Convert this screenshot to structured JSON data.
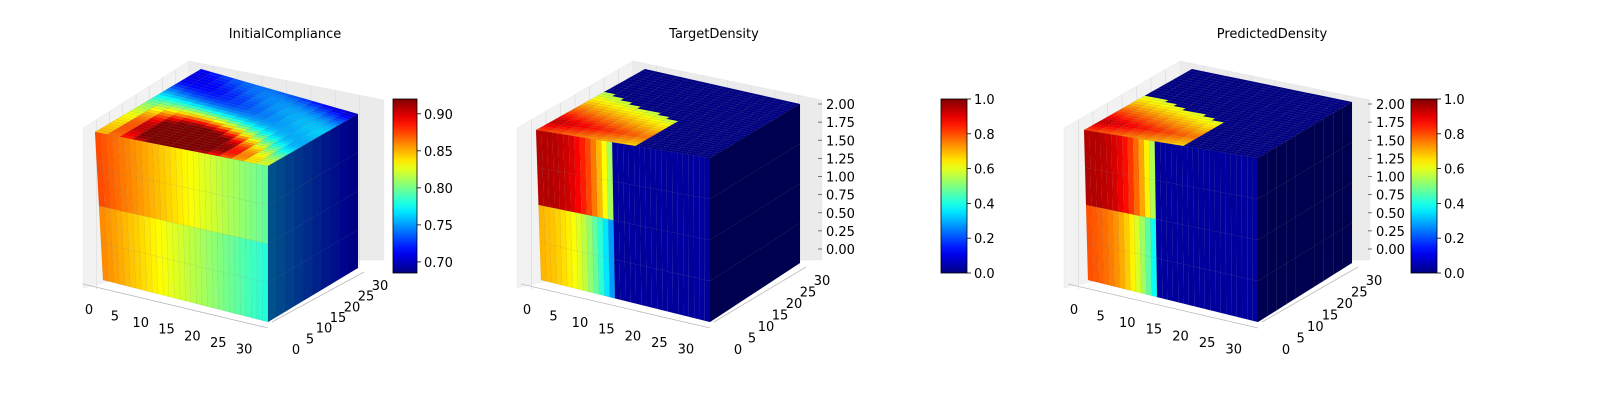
{
  "colormap": "jet",
  "charts": [
    {
      "title": "InitialCompliance",
      "x_ticks": [
        "0",
        "5",
        "10",
        "15",
        "20",
        "25",
        "30"
      ],
      "y_ticks": [
        "0",
        "5",
        "10",
        "15",
        "20",
        "25",
        "30"
      ],
      "z_ticks": [],
      "colorbar": {
        "ticks": [
          "0.70",
          "0.75",
          "0.80",
          "0.85",
          "0.90"
        ],
        "range": [
          0.685,
          0.92
        ]
      },
      "surface": {
        "front_left": 0.86,
        "front_right": 0.78,
        "top_hot": 0.92,
        "top_cool": 0.72,
        "side": 0.7
      }
    },
    {
      "title": "TargetDensity",
      "x_ticks": [
        "0",
        "5",
        "10",
        "15",
        "20",
        "25",
        "30"
      ],
      "y_ticks": [
        "0",
        "5",
        "10",
        "15",
        "20",
        "25",
        "30"
      ],
      "z_ticks": [
        "0.00",
        "0.25",
        "0.50",
        "0.75",
        "1.00",
        "1.25",
        "1.50",
        "1.75",
        "2.00"
      ],
      "colorbar": {
        "ticks": [
          "0.0",
          "0.2",
          "0.4",
          "0.6",
          "0.8",
          "1.0"
        ],
        "range": [
          0,
          1
        ]
      },
      "surface": {
        "solid_until": 0.45,
        "lower_value": 0.6,
        "upper_value": 0.95
      }
    },
    {
      "title": "PredictedDensity",
      "x_ticks": [
        "0",
        "5",
        "10",
        "15",
        "20",
        "25",
        "30"
      ],
      "y_ticks": [
        "0",
        "5",
        "10",
        "15",
        "20",
        "25",
        "30"
      ],
      "z_ticks": [
        "0.00",
        "0.25",
        "0.50",
        "0.75",
        "1.00",
        "1.25",
        "1.50",
        "1.75",
        "2.00"
      ],
      "colorbar": {
        "ticks": [
          "0.0",
          "0.2",
          "0.4",
          "0.6",
          "0.8",
          "1.0"
        ],
        "range": [
          0,
          1
        ]
      },
      "surface": {
        "solid_until": 0.42,
        "lower_value": 0.7,
        "upper_value": 0.95
      }
    }
  ],
  "chart_data": [
    {
      "type": "heatmap",
      "title": "InitialCompliance",
      "x_range": [
        0,
        32
      ],
      "y_range": [
        0,
        32
      ],
      "colorbar_range": [
        0.685,
        0.92
      ],
      "colorbar_ticks": [
        0.7,
        0.75,
        0.8,
        0.85,
        0.9
      ]
    },
    {
      "type": "heatmap",
      "title": "TargetDensity",
      "x_range": [
        0,
        32
      ],
      "y_range": [
        0,
        32
      ],
      "z_range": [
        0,
        2
      ],
      "colorbar_range": [
        0,
        1
      ],
      "colorbar_ticks": [
        0.0,
        0.2,
        0.4,
        0.6,
        0.8,
        1.0
      ]
    },
    {
      "type": "heatmap",
      "title": "PredictedDensity",
      "x_range": [
        0,
        32
      ],
      "y_range": [
        0,
        32
      ],
      "z_range": [
        0,
        2
      ],
      "colorbar_range": [
        0,
        1
      ],
      "colorbar_ticks": [
        0.0,
        0.2,
        0.4,
        0.6,
        0.8,
        1.0
      ]
    }
  ]
}
